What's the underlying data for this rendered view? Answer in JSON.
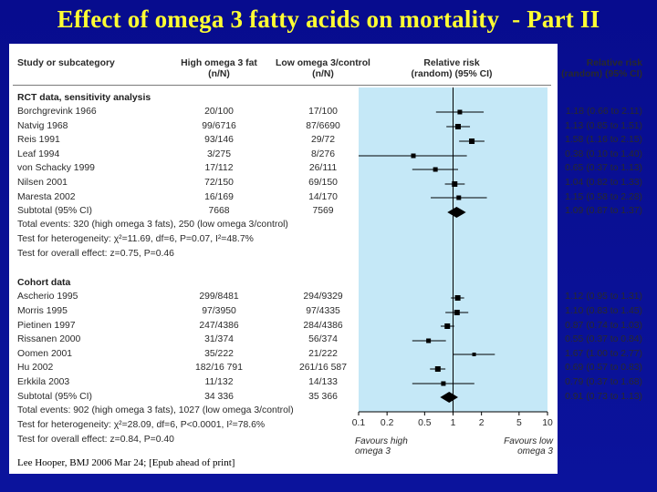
{
  "title": "Effect of omega 3 fatty acids on mortality  - Part II",
  "headers": {
    "study": "Study or subcategory",
    "high_line1": "High omega 3 fat",
    "high_line2": "(n/N)",
    "low_line1": "Low omega 3/control",
    "low_line2": "(n/N)",
    "rr_line1": "Relative risk",
    "rr_line2": "(random) (95% CI)",
    "rr2_line1": "Relative risk",
    "rr2_line2": "(random) (95% CI)"
  },
  "sections": [
    {
      "title": "RCT data, sensitivity analysis",
      "rows": [
        {
          "study": "Borchgrevink 1966",
          "high": "20/100",
          "low": "17/100",
          "ci_text": "1.18 (0.66 to 2.11)"
        },
        {
          "study": "Natvig 1968",
          "high": "99/6716",
          "low": "87/6690",
          "ci_text": "1.13 (0.85 to 1.51)"
        },
        {
          "study": "Reis 1991",
          "high": "93/146",
          "low": "29/72",
          "ci_text": "1.58 (1.16 to 2.15)"
        },
        {
          "study": "Leaf 1994",
          "high": "3/275",
          "low": "8/276",
          "ci_text": "0.38 (0.10 to 1.40)"
        },
        {
          "study": "von Schacky 1999",
          "high": "17/112",
          "low": "26/111",
          "ci_text": "0.65 (0.37 to 1.13)"
        },
        {
          "study": "Nilsen 2001",
          "high": "72/150",
          "low": "69/150",
          "ci_text": "1.04 (0.82 to 1.33)"
        },
        {
          "study": "Maresta 2002",
          "high": "16/169",
          "low": "14/170",
          "ci_text": "1.15 (0.58 to 2.28)"
        }
      ],
      "subtotal": {
        "study": "Subtotal (95% CI)",
        "high": "7668",
        "low": "7569",
        "ci_text": "1.09 (0.87 to 1.37)"
      },
      "events": "Total events: 320 (high omega 3 fats), 250 (low omega 3/control)",
      "heterogeneity": "Test for heterogeneity: χ²=11.69, df=6, P=0.07, I²=48.7%",
      "overall": "Test for overall effect: z=0.75, P=0.46"
    },
    {
      "title": "Cohort data",
      "rows": [
        {
          "study": "Ascherio 1995",
          "high": "299/8481",
          "low": "294/9329",
          "ci_text": "1.12 (0.95 to 1.31)"
        },
        {
          "study": "Morris 1995",
          "high": "97/3950",
          "low": "97/4335",
          "ci_text": "1.10 (0.83 to 1.45)"
        },
        {
          "study": "Pietinen 1997",
          "high": "247/4386",
          "low": "284/4386",
          "ci_text": "0.87 (0.74 to 1.03)"
        },
        {
          "study": "Rissanen 2000",
          "high": "31/374",
          "low": "56/374",
          "ci_text": "0.55 (0.37 to 0.84)"
        },
        {
          "study": "Oomen 2001",
          "high": "35/222",
          "low": "21/222",
          "ci_text": "1.67 (1.00 to 2.77)"
        },
        {
          "study": "Hu 2002",
          "high": "182/16 791",
          "low": "261/16 587",
          "ci_text": "0.69 (0.57 to 0.83)"
        },
        {
          "study": "Erkkila 2003",
          "high": "11/132",
          "low": "14/133",
          "ci_text": "0.79 (0.37 to 1.68)"
        }
      ],
      "subtotal": {
        "study": "Subtotal (95% CI)",
        "high": "34 336",
        "low": "35 366",
        "ci_text": "0.91 (0.73 to 1.13)"
      },
      "events": "Total events: 902 (high omega 3 fats), 1027 (low omega 3/control)",
      "heterogeneity": "Test for heterogeneity: χ²=28.09, df=6, P<0.0001, I²=78.6%",
      "overall": "Test for overall effect: z=0.84, P=0.40"
    }
  ],
  "favours_left_line1": "Favours high",
  "favours_left_line2": "omega 3",
  "favours_right_line1": "Favours low",
  "favours_right_line2": "omega 3",
  "citation": "Lee Hooper, BMJ  2006 Mar 24; [Epub ahead of print]",
  "colors": {
    "background": "#0a1196",
    "title": "#ffff33",
    "plot_band": "#c5e8f7",
    "marker": "#000000"
  },
  "chart_data": {
    "type": "forest",
    "x_scale": "log",
    "x_ticks": [
      "0.1",
      "0.2",
      "0.5",
      "1",
      "2",
      "5",
      "10"
    ],
    "xlim": [
      0.1,
      10
    ],
    "reference_line": 1,
    "series": [
      {
        "est": 1.18,
        "lo": 0.66,
        "hi": 2.11
      },
      {
        "est": 1.13,
        "lo": 0.85,
        "hi": 1.51
      },
      {
        "est": 1.58,
        "lo": 1.16,
        "hi": 2.15
      },
      {
        "est": 0.38,
        "lo": 0.1,
        "hi": 1.4
      },
      {
        "est": 0.65,
        "lo": 0.37,
        "hi": 1.13
      },
      {
        "est": 1.04,
        "lo": 0.82,
        "hi": 1.33
      },
      {
        "est": 1.15,
        "lo": 0.58,
        "hi": 2.28
      },
      {
        "est": 1.09,
        "lo": 0.87,
        "hi": 1.37,
        "subtotal": true
      },
      {
        "est": 1.12,
        "lo": 0.95,
        "hi": 1.31
      },
      {
        "est": 1.1,
        "lo": 0.83,
        "hi": 1.45
      },
      {
        "est": 0.87,
        "lo": 0.74,
        "hi": 1.03
      },
      {
        "est": 0.55,
        "lo": 0.37,
        "hi": 0.84
      },
      {
        "est": 1.67,
        "lo": 1.0,
        "hi": 2.77
      },
      {
        "est": 0.69,
        "lo": 0.57,
        "hi": 0.83
      },
      {
        "est": 0.79,
        "lo": 0.37,
        "hi": 1.68
      },
      {
        "est": 0.91,
        "lo": 0.73,
        "hi": 1.13,
        "subtotal": true
      }
    ]
  }
}
